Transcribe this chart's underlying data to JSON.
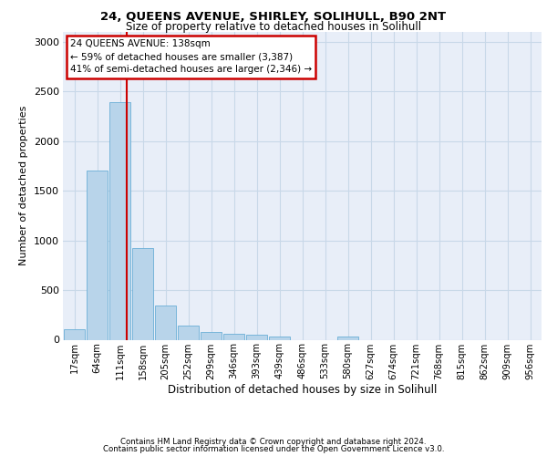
{
  "title_line1": "24, QUEENS AVENUE, SHIRLEY, SOLIHULL, B90 2NT",
  "title_line2": "Size of property relative to detached houses in Solihull",
  "xlabel": "Distribution of detached houses by size in Solihull",
  "ylabel": "Number of detached properties",
  "bin_labels": [
    "17sqm",
    "64sqm",
    "111sqm",
    "158sqm",
    "205sqm",
    "252sqm",
    "299sqm",
    "346sqm",
    "393sqm",
    "439sqm",
    "486sqm",
    "533sqm",
    "580sqm",
    "627sqm",
    "674sqm",
    "721sqm",
    "768sqm",
    "815sqm",
    "862sqm",
    "909sqm",
    "956sqm"
  ],
  "bar_values": [
    110,
    1700,
    2390,
    920,
    340,
    145,
    75,
    60,
    50,
    35,
    0,
    0,
    30,
    0,
    0,
    0,
    0,
    0,
    0,
    0,
    0
  ],
  "bar_color": "#b8d4ea",
  "bar_edge_color": "#6aaed6",
  "grid_color": "#c8d8e8",
  "bg_color": "#e8eef8",
  "vline_color": "#cc0000",
  "vline_pos": 2.3,
  "annotation_text": "24 QUEENS AVENUE: 138sqm\n← 59% of detached houses are smaller (3,387)\n41% of semi-detached houses are larger (2,346) →",
  "annotation_box_color": "#cc0000",
  "ylim": [
    0,
    3100
  ],
  "yticks": [
    0,
    500,
    1000,
    1500,
    2000,
    2500,
    3000
  ],
  "footer_line1": "Contains HM Land Registry data © Crown copyright and database right 2024.",
  "footer_line2": "Contains public sector information licensed under the Open Government Licence v3.0."
}
